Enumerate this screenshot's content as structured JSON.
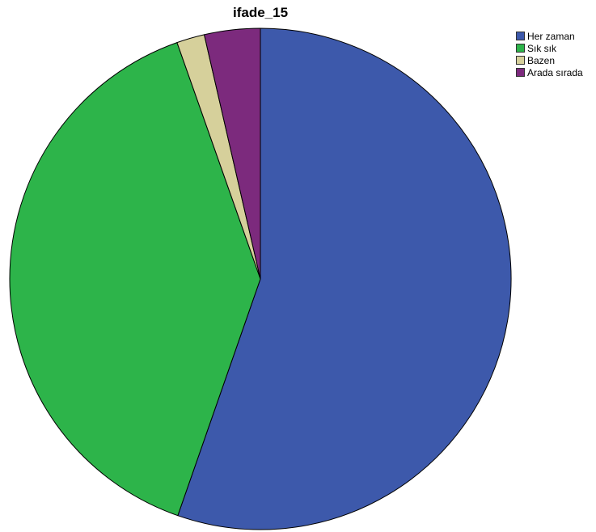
{
  "chart_data": {
    "type": "pie",
    "title": "ifade_15",
    "legend_position": "top-right",
    "start_angle": "top (12 o'clock), clockwise",
    "series": [
      {
        "name": "Her zaman",
        "value": 55.4,
        "color": "#3D59AB"
      },
      {
        "name": "Sık sık",
        "value": 39.3,
        "color": "#2DB44A"
      },
      {
        "name": "Bazen",
        "value": 1.8,
        "color": "#D6D09B"
      },
      {
        "name": "Arada sırada",
        "value": 3.6,
        "color": "#7C2A7D"
      }
    ]
  }
}
